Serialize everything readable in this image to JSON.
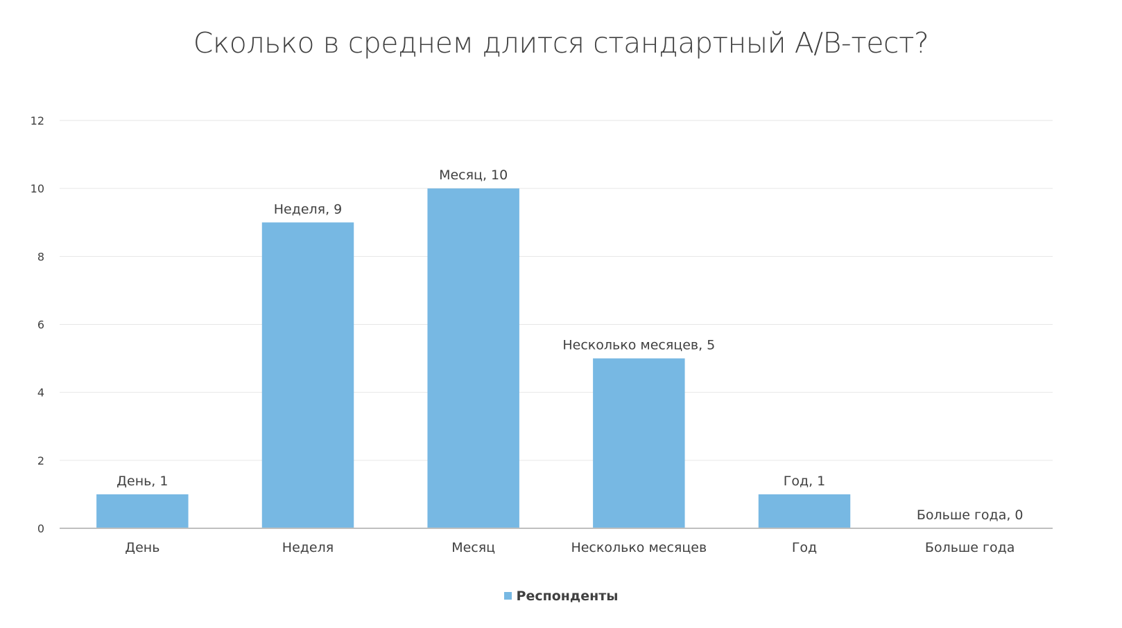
{
  "chart_data": {
    "type": "bar",
    "title": "Сколько в среднем длится стандартный A/B-тест?",
    "categories": [
      "День",
      "Неделя",
      "Месяц",
      "Несколько месяцев",
      "Год",
      "Больше года"
    ],
    "series": [
      {
        "name": "Респонденты",
        "values": [
          1,
          9,
          10,
          5,
          1,
          0
        ]
      }
    ],
    "data_labels": [
      "День, 1",
      "Неделя, 9",
      "Месяц, 10",
      "Несколько месяцев, 5",
      "Год, 1",
      "Больше года, 0"
    ],
    "ylim": [
      0,
      12
    ],
    "yticks": [
      "0",
      "2",
      "4",
      "6",
      "8",
      "10",
      "12"
    ],
    "xlabel": "",
    "ylabel": "",
    "grid": true,
    "legend": "bottom",
    "colors": {
      "bar": "#77b8e3",
      "grid": "#e6e6e6",
      "axis": "#bfbfbf",
      "text": "#404040"
    }
  }
}
